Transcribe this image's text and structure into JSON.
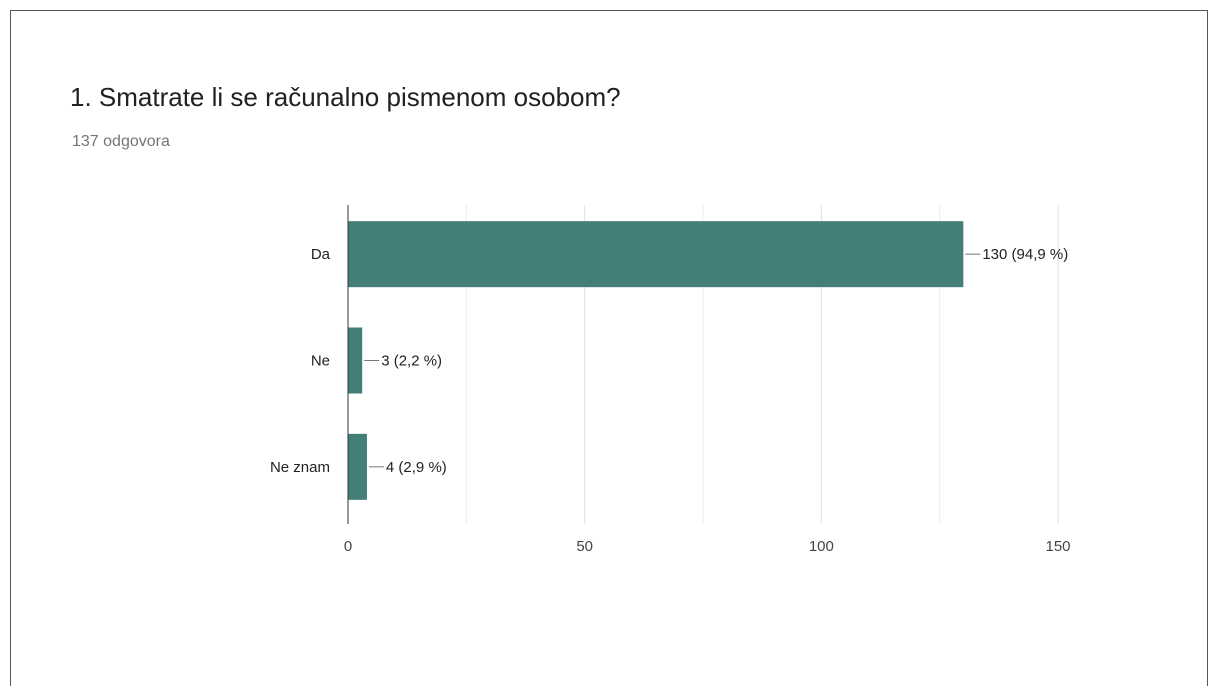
{
  "chart_data": {
    "type": "hbar",
    "title": "1. Smatrate li se računalno pismenom osobom?",
    "subtitle": "137 odgovora",
    "categories": [
      "Da",
      "Ne",
      "Ne znam"
    ],
    "values": [
      130,
      3,
      4
    ],
    "value_labels": [
      "130 (94,9 %)",
      "3 (2,2 %)",
      "4 (2,9 %)"
    ],
    "color": "#437e79",
    "xlim": [
      0,
      150
    ],
    "xticks": [
      0,
      50,
      100,
      150
    ],
    "minor_gridlines": [
      25,
      75,
      125
    ],
    "grid": true
  }
}
